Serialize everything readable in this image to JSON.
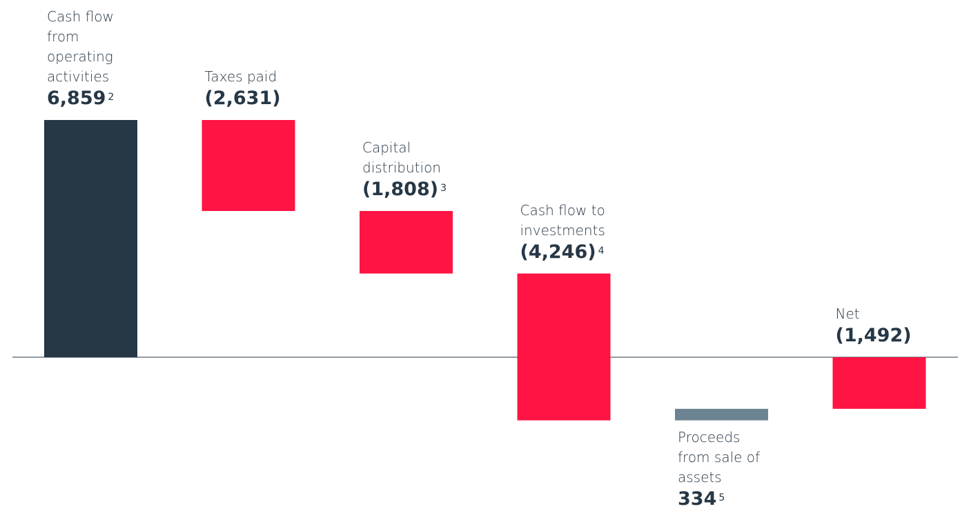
{
  "chart_data": {
    "type": "waterfall",
    "categories": [
      "Cash flow from operating activities",
      "Taxes paid",
      "Capital distribution",
      "Cash flow to investments",
      "Proceeds from sale of assets",
      "Net"
    ],
    "values": [
      6859,
      -2631,
      -1808,
      -4246,
      334,
      -1492
    ],
    "value_labels": [
      "6,859",
      "(2,631)",
      "(1,808)",
      "(4,246)",
      "334",
      "(1,492)"
    ],
    "footnotes": [
      "2",
      null,
      "3",
      "4",
      "5",
      null
    ],
    "measure": [
      "absolute",
      "relative",
      "relative",
      "relative",
      "relative",
      "absolute"
    ],
    "colors": [
      "#263746",
      "#ff1443",
      "#ff1443",
      "#ff1443",
      "#6c8392",
      "#ff1443"
    ]
  }
}
